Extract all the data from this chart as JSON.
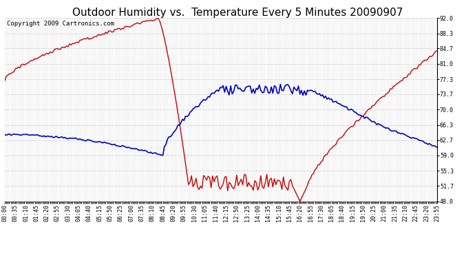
{
  "title": "Outdoor Humidity vs.  Temperature Every 5 Minutes 20090907",
  "copyright_text": "Copyright 2009 Cartronics.com",
  "background_color": "#ffffff",
  "plot_bg_color": "#ffffff",
  "grid_color": "#c8c8c8",
  "line_color_humidity": "#cc0000",
  "line_color_temp": "#0000cc",
  "y_ticks": [
    48.0,
    51.7,
    55.3,
    59.0,
    62.7,
    66.3,
    70.0,
    73.7,
    77.3,
    81.0,
    84.7,
    88.3,
    92.0
  ],
  "y_min": 48.0,
  "y_max": 92.0,
  "title_fontsize": 11,
  "copyright_fontsize": 6.5,
  "tick_fontsize": 6.0,
  "xlabel_every_n": 7,
  "n_points": 288
}
